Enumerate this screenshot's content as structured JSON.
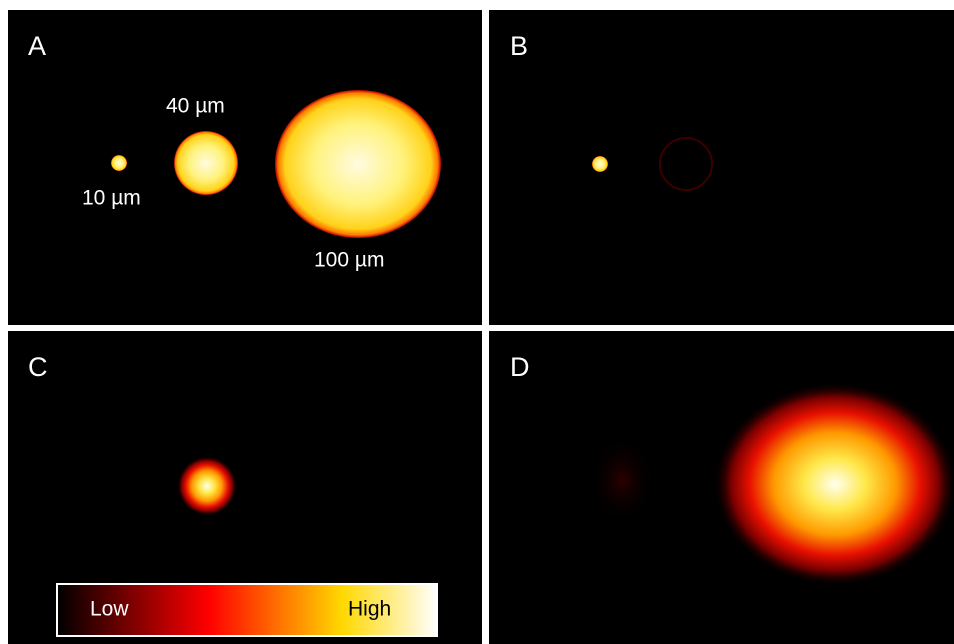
{
  "panels": [
    {
      "label": "A",
      "annotations": [
        "10 µm",
        "40 µm",
        "100 µm"
      ]
    },
    {
      "label": "B"
    },
    {
      "label": "C"
    },
    {
      "label": "D"
    }
  ],
  "colorbar": {
    "low": "Low",
    "high": "High"
  }
}
